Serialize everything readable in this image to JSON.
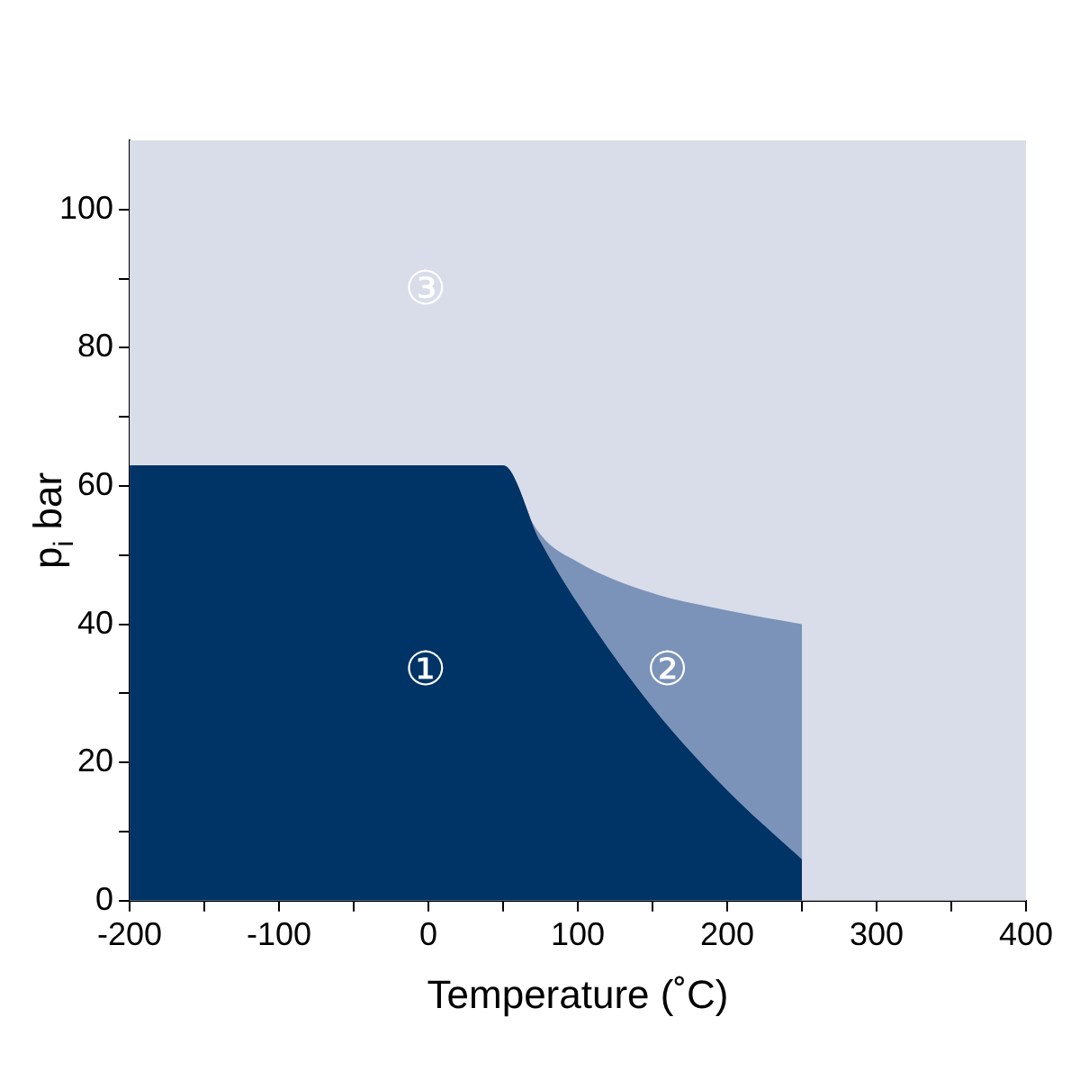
{
  "chart_data": {
    "type": "area",
    "xlabel": "Temperature (˚C)",
    "ylabel": "p$_{i}$ bar",
    "xlim": [
      -200,
      400
    ],
    "ylim": [
      0,
      110
    ],
    "xticks": [
      -200,
      {
        "value": -150,
        "label": null
      },
      -100,
      {
        "value": -50,
        "label": null
      },
      0,
      {
        "value": 50,
        "label": null
      },
      100,
      {
        "value": 150,
        "label": null
      },
      200,
      {
        "value": 250,
        "label": null
      },
      300,
      {
        "value": 350,
        "label": null
      },
      400
    ],
    "yticks": [
      0,
      {
        "value": 10,
        "label": null
      },
      20,
      {
        "value": 30,
        "label": null
      },
      40,
      {
        "value": 50,
        "label": null
      },
      60,
      {
        "value": 70,
        "label": null
      },
      80,
      {
        "value": 90,
        "label": null
      },
      100
    ],
    "grid": false,
    "legend": false,
    "bands": [
      {
        "axis": "x",
        "from": -200,
        "to": 400,
        "color": "#d9dde9"
      }
    ],
    "series": [
      {
        "color": "#003366",
        "x": [
          -200,
          50,
          75,
          100,
          150,
          200,
          250
        ],
        "values": [
          63,
          63,
          52,
          43,
          28,
          16,
          6
        ]
      },
      {
        "color": "#7b93b9",
        "x": [
          50,
          75,
          100,
          150,
          200,
          250
        ],
        "values": [
          63,
          53,
          49,
          44.5,
          42,
          40
        ]
      }
    ],
    "annotations": [
      "③",
      "①",
      "②"
    ]
  }
}
